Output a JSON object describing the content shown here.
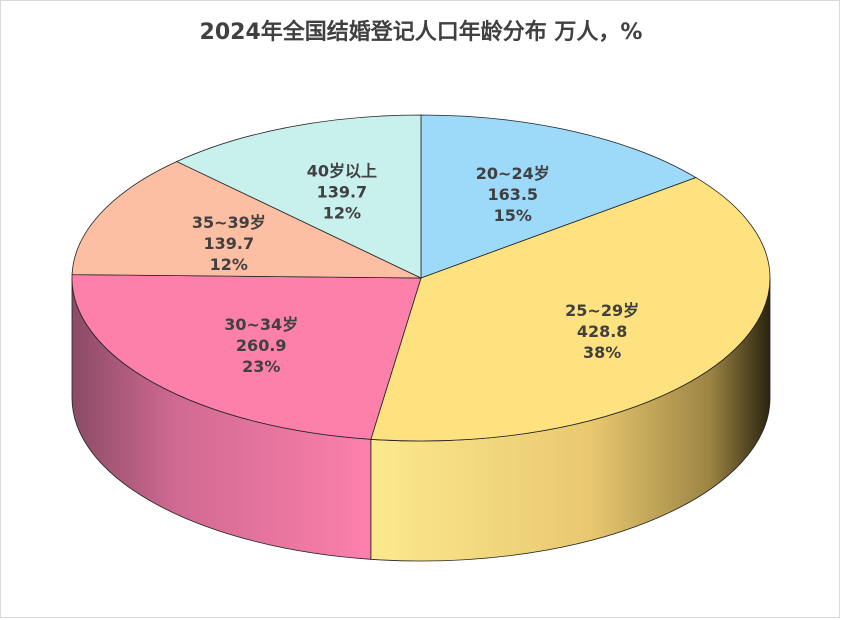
{
  "chart_data": {
    "type": "pie",
    "title": "2024年全国结婚登记人口年龄分布 万人，%",
    "categories": [
      "20~24岁",
      "25~29岁",
      "30~34岁",
      "35~39岁",
      "40岁以上"
    ],
    "values": [
      163.5,
      428.8,
      260.9,
      139.7,
      139.7
    ],
    "percents": [
      "15%",
      "38%",
      "23%",
      "12%",
      "12%"
    ],
    "value_labels": [
      "163.5",
      "428.8",
      "260.9",
      "139.7",
      "139.7"
    ],
    "colors": [
      "#9dd9f8",
      "#fde27f",
      "#fd80ab",
      "#fcbfa4",
      "#c8f0ec"
    ],
    "legend": "none",
    "style": "3d"
  }
}
